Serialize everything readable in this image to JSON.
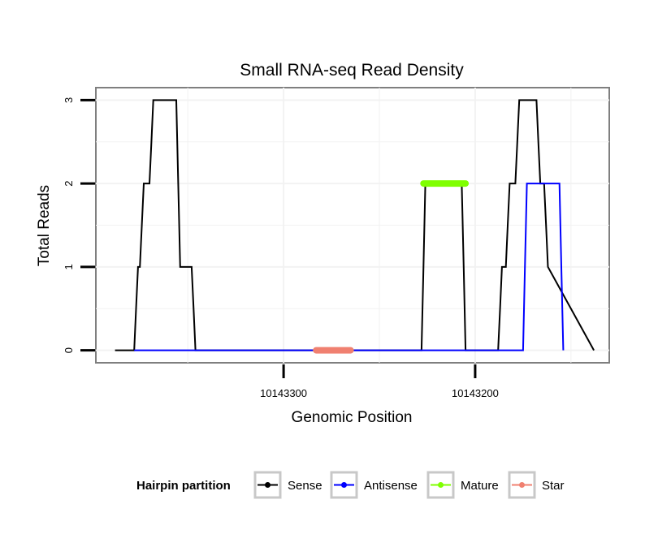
{
  "chart_data": {
    "type": "line",
    "title": "Small RNA-seq Read Density",
    "xlabel": "Genomic Position",
    "ylabel": "Total Reads",
    "x_reversed": true,
    "xlim": [
      10143398,
      10143130
    ],
    "ylim": [
      -0.15,
      3.15
    ],
    "x_ticks": [
      10143300,
      10143200
    ],
    "x_tick_labels": [
      "10143300",
      "10143200"
    ],
    "y_ticks": [
      0,
      1,
      2,
      3
    ],
    "y_tick_labels": [
      "0",
      "1",
      "2",
      "3"
    ],
    "grid": true,
    "legend": {
      "title": "Hairpin partition",
      "position": "bottom",
      "entries": [
        "Sense",
        "Antisense",
        "Mature",
        "Star"
      ]
    },
    "series": [
      {
        "name": "Sense",
        "color": "#000000",
        "x": [
          10143388,
          10143378,
          10143377,
          10143376,
          10143375,
          10143374,
          10143373,
          10143370,
          10143369,
          10143368,
          10143356,
          10143355,
          10143354,
          10143348,
          10143347,
          10143346,
          10143344,
          10143228,
          10143227,
          10143226,
          10143207,
          10143206,
          10143205,
          10143188,
          10143187,
          10143186,
          10143184,
          10143183,
          10143182,
          10143179,
          10143178,
          10143177,
          10143168,
          10143167,
          10143166,
          10143164,
          10143163,
          10143162,
          10143138
        ],
        "y": [
          0,
          0,
          0.5,
          1,
          1,
          1.5,
          2,
          2,
          2.5,
          3,
          3,
          2,
          1,
          1,
          0.5,
          0,
          0,
          0,
          1,
          2,
          2,
          1,
          0,
          0,
          0.5,
          1,
          1,
          1.5,
          2,
          2,
          2.5,
          3,
          3,
          2.5,
          2,
          2,
          1.5,
          1,
          0
        ]
      },
      {
        "name": "Antisense",
        "color": "#0000ff",
        "x": [
          10143378,
          10143346,
          10143228,
          10143206,
          10143175,
          10143174,
          10143173,
          10143156,
          10143155,
          10143154
        ],
        "y": [
          0,
          0,
          0,
          0,
          0,
          1,
          2,
          2,
          1,
          0
        ]
      },
      {
        "name": "Mature",
        "color": "#7fff00",
        "x": [
          10143227,
          10143205
        ],
        "y": [
          2,
          2
        ]
      },
      {
        "name": "Star",
        "color": "#f08070",
        "x": [
          10143283,
          10143265
        ],
        "y": [
          0,
          0
        ]
      }
    ]
  }
}
